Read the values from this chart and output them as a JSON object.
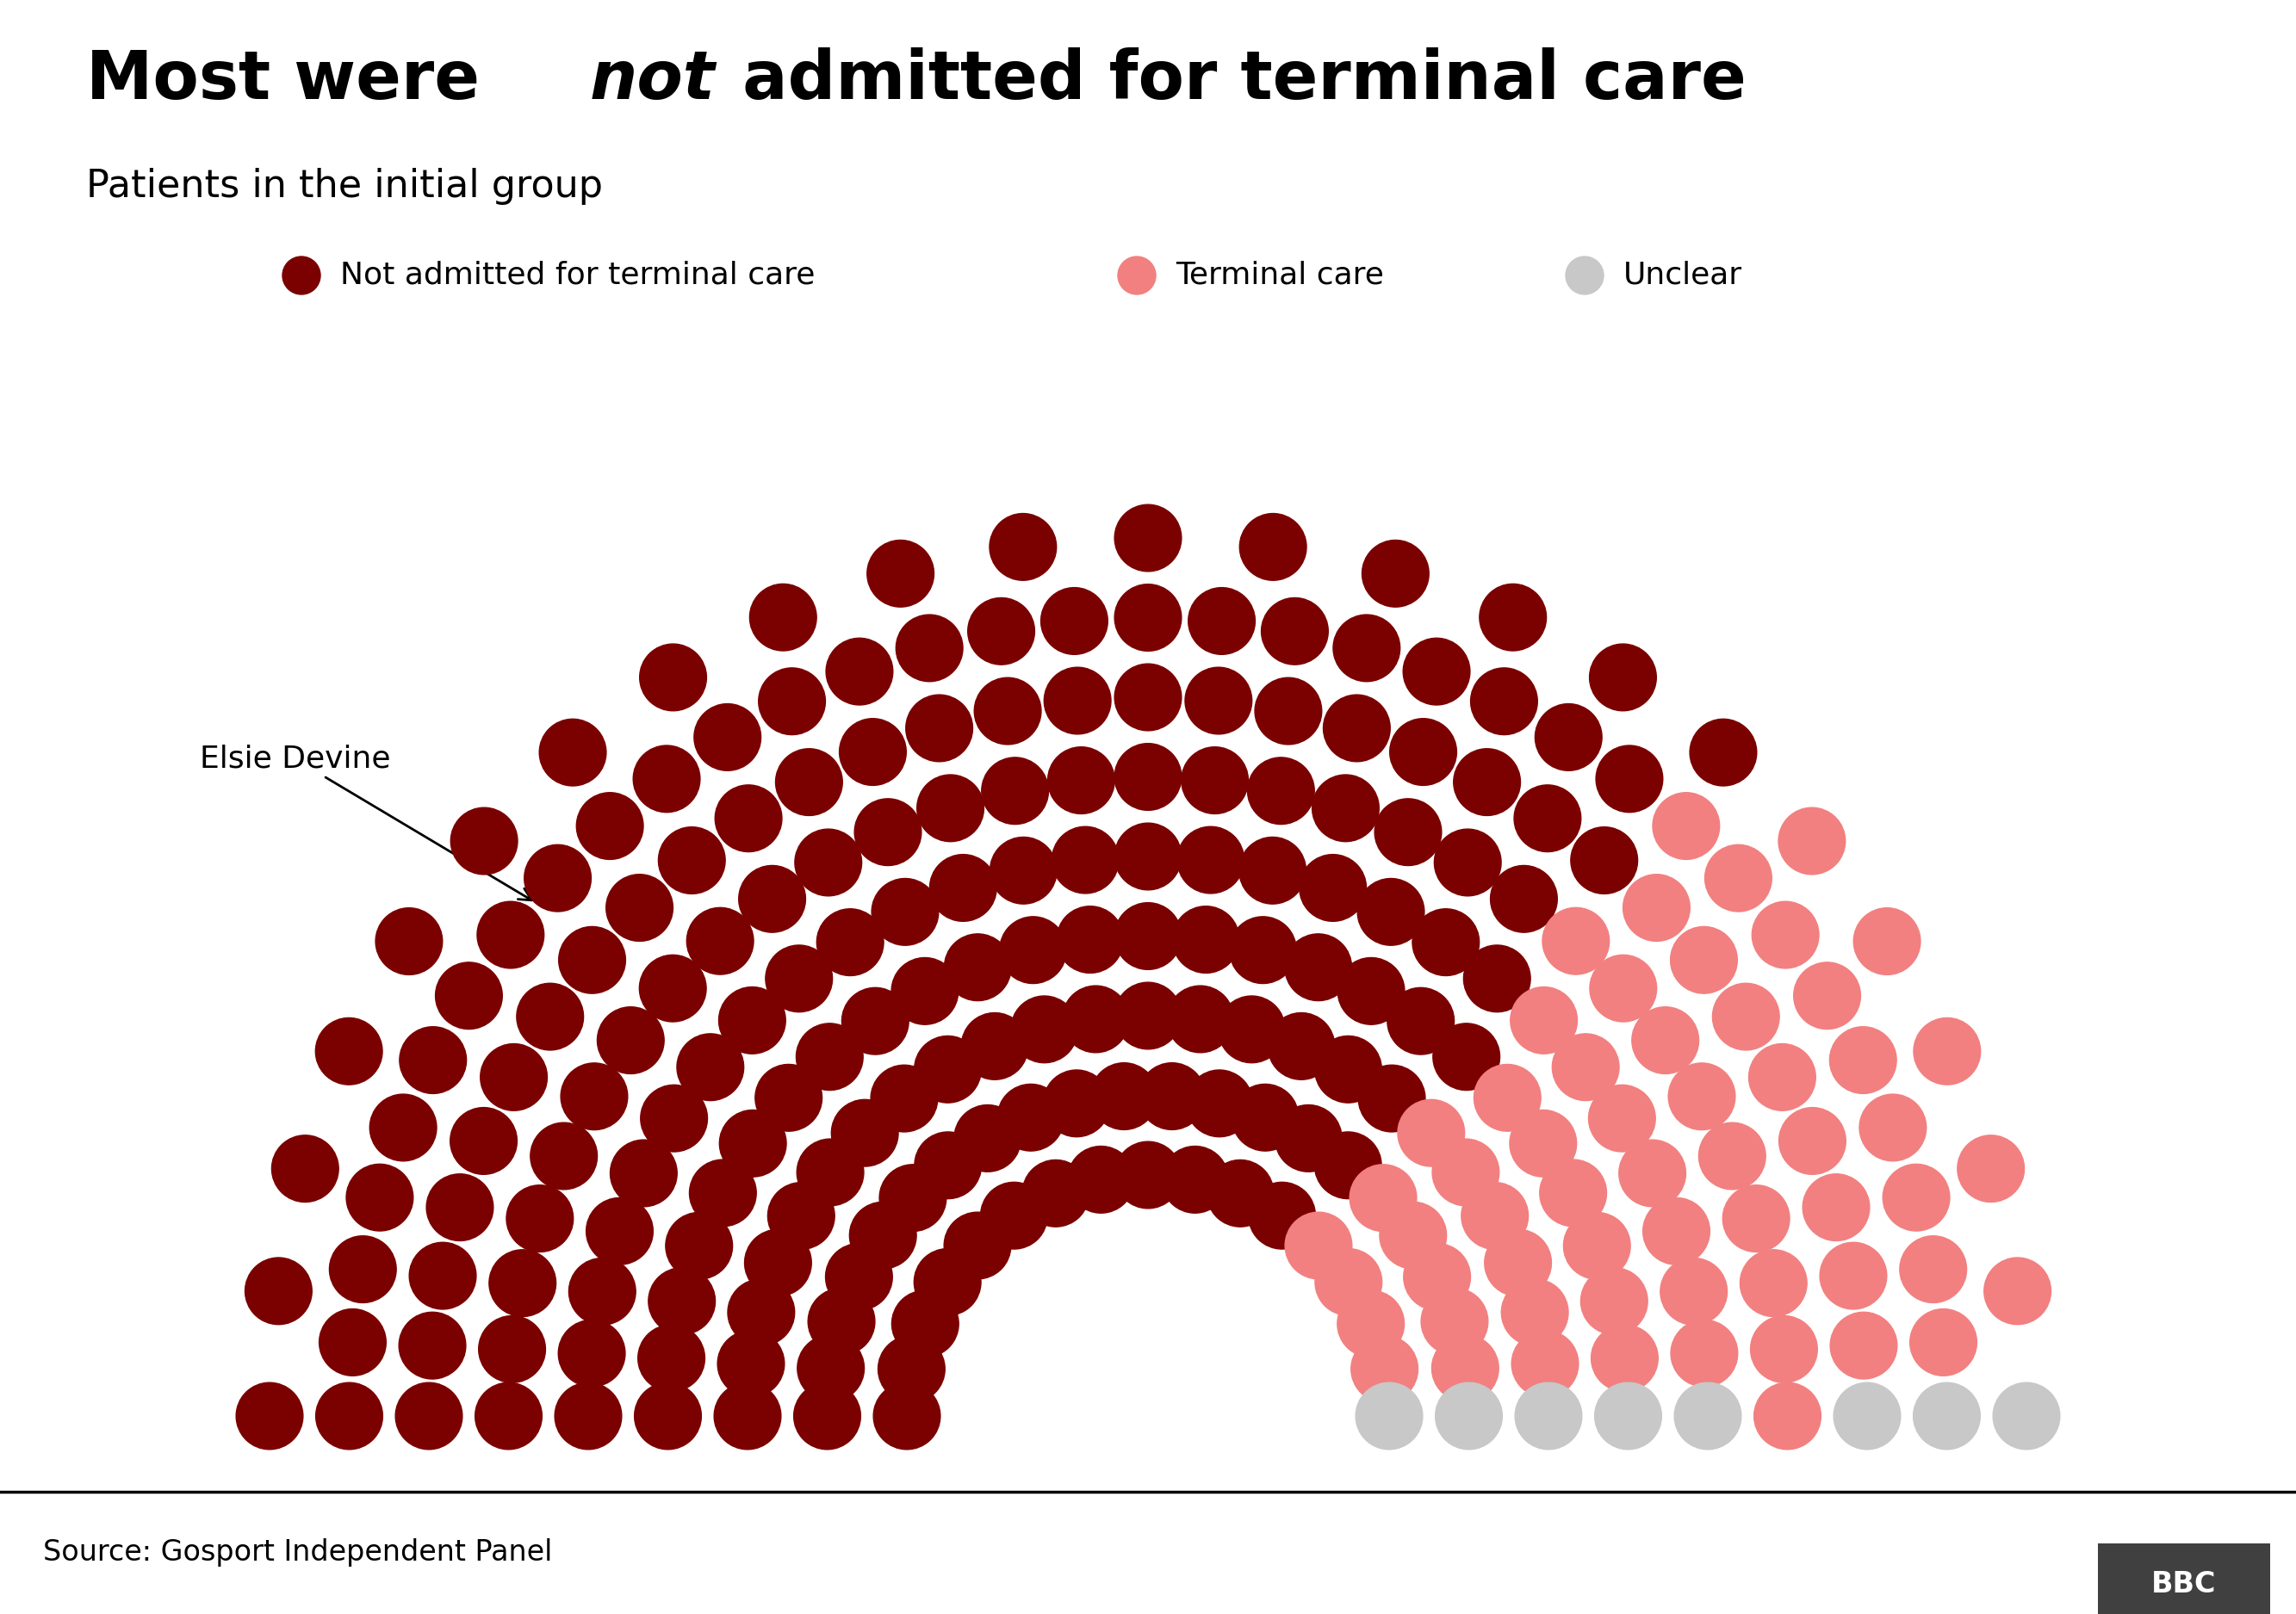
{
  "color_not": "#7B0000",
  "color_terminal": "#F28080",
  "color_unclear": "#C8C8C8",
  "annotation_text": "Elsie Devine",
  "source_text": "Source: Gosport Independent Panel",
  "background_color": "#FFFFFF",
  "n_not": 175,
  "n_terminal": 59,
  "n_unclear": 8,
  "total": 242,
  "legend_labels": [
    "Not admitted for terminal care",
    "Terminal care",
    "Unclear"
  ],
  "subtitle": "Patients in the initial group"
}
